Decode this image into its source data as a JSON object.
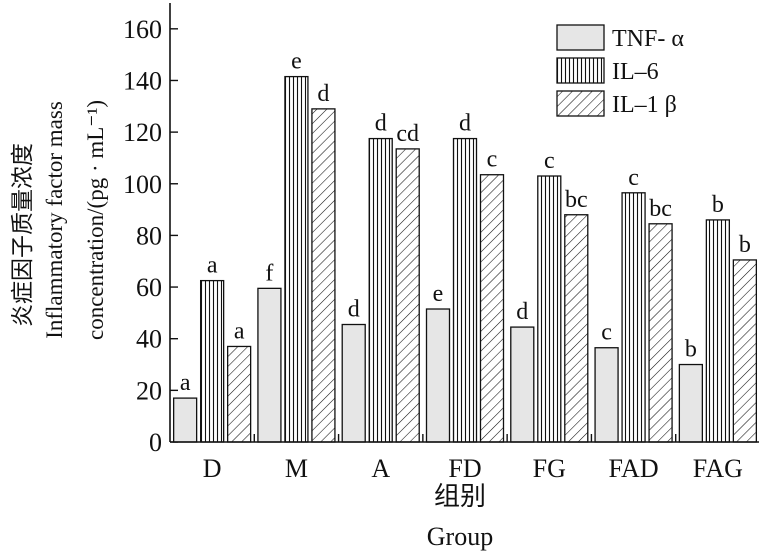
{
  "chart_data": {
    "type": "bar",
    "categories": [
      "D",
      "M",
      "A",
      "FD",
      "FG",
      "FAD",
      "FAG"
    ],
    "series": [
      {
        "name": "TNF- α",
        "values": [
          17,
          59.5,
          45.5,
          51.5,
          44.5,
          36.5,
          30
        ],
        "labels": [
          "a",
          "f",
          "d",
          "e",
          "d",
          "c",
          "b"
        ],
        "color": "#e6e6e6",
        "pattern": "solid-light-gray"
      },
      {
        "name": "IL–6",
        "values": [
          62.5,
          141.5,
          117.5,
          117.5,
          103,
          96.5,
          86
        ],
        "labels": [
          "a",
          "e",
          "d",
          "d",
          "c",
          "c",
          "b"
        ],
        "color": "#ffffff",
        "pattern": "vertical-stripes"
      },
      {
        "name": "IL–1 β",
        "values": [
          37,
          129,
          113.5,
          103.5,
          88,
          84.5,
          70.5
        ],
        "labels": [
          "a",
          "d",
          "cd",
          "c",
          "bc",
          "bc",
          "b"
        ],
        "color": "#ffffff",
        "pattern": "diagonal-hatch"
      }
    ],
    "title": "",
    "ylabel_lines": [
      "炎症因子质量浓度",
      "Inflammatory factor mass",
      "concentration/(pg · mL⁻¹)"
    ],
    "xlabel_lines": [
      "组别",
      "Group"
    ],
    "ylim": [
      0,
      170
    ],
    "yticks": [
      "0",
      "20",
      "40",
      "60",
      "80",
      "100",
      "120",
      "140",
      "160"
    ],
    "grid": false,
    "legend_position": "top-right"
  }
}
